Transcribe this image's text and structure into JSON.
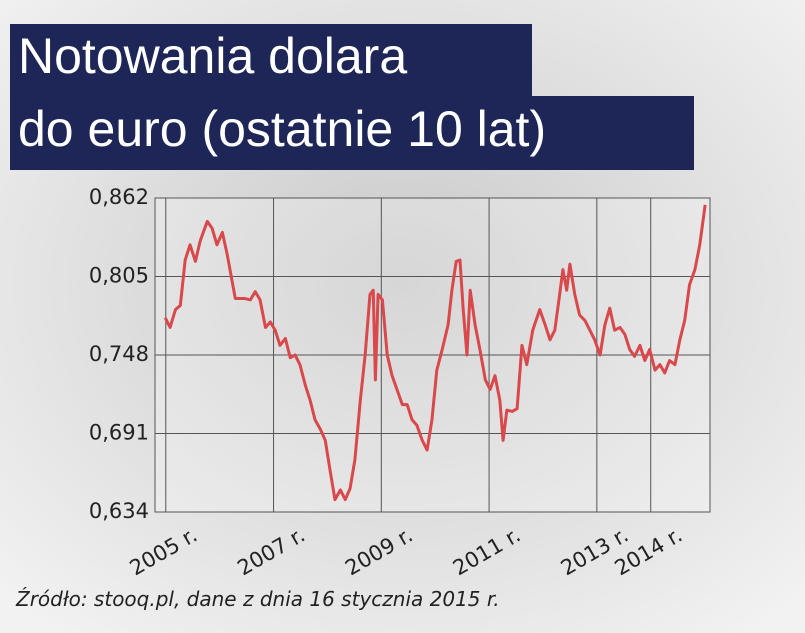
{
  "chart_data": {
    "type": "line",
    "title": [
      "Notowania dolara",
      "do euro (ostatnie 10 lat)"
    ],
    "source": "Źródło: stooq.pl, dane z dnia 16 stycznia 2015 r.",
    "color": "#d9484b",
    "x": [
      2004.99,
      2005.08,
      2005.18,
      2005.27,
      2005.36,
      2005.45,
      2005.55,
      2005.64,
      2005.77,
      2005.86,
      2005.95,
      2006.05,
      2006.14,
      2006.29,
      2006.47,
      2006.57,
      2006.66,
      2006.75,
      2006.85,
      2006.94,
      2007.03,
      2007.12,
      2007.22,
      2007.31,
      2007.4,
      2007.49,
      2007.59,
      2007.68,
      2007.77,
      2007.87,
      2007.96,
      2008.05,
      2008.14,
      2008.24,
      2008.33,
      2008.42,
      2008.51,
      2008.61,
      2008.7,
      2008.79,
      2008.85,
      2008.89,
      2008.94,
      2009.02,
      2009.11,
      2009.2,
      2009.29,
      2009.39,
      2009.48,
      2009.57,
      2009.66,
      2009.76,
      2009.85,
      2009.94,
      2010.03,
      2010.13,
      2010.24,
      2010.31,
      2010.39,
      2010.46,
      2010.52,
      2010.59,
      2010.65,
      2010.74,
      2010.83,
      2010.93,
      2011.02,
      2011.11,
      2011.2,
      2011.26,
      2011.33,
      2011.43,
      2011.52,
      2011.61,
      2011.7,
      2011.81,
      2011.94,
      2012.04,
      2012.13,
      2012.22,
      2012.31,
      2012.37,
      2012.44,
      2012.5,
      2012.59,
      2012.68,
      2012.78,
      2012.87,
      2012.96,
      2013.06,
      2013.15,
      2013.24,
      2013.33,
      2013.43,
      2013.52,
      2013.61,
      2013.7,
      2013.8,
      2013.89,
      2013.98,
      2014.08,
      2014.17,
      2014.26,
      2014.35,
      2014.45,
      2014.54,
      2014.63,
      2014.72,
      2014.82,
      2014.91,
      2015.01
    ],
    "values": [
      0.775,
      0.768,
      0.781,
      0.784,
      0.817,
      0.828,
      0.816,
      0.831,
      0.845,
      0.84,
      0.828,
      0.837,
      0.821,
      0.789,
      0.789,
      0.788,
      0.794,
      0.788,
      0.768,
      0.772,
      0.766,
      0.755,
      0.76,
      0.746,
      0.748,
      0.741,
      0.726,
      0.715,
      0.701,
      0.694,
      0.686,
      0.664,
      0.643,
      0.65,
      0.643,
      0.651,
      0.672,
      0.715,
      0.748,
      0.792,
      0.795,
      0.73,
      0.792,
      0.788,
      0.748,
      0.733,
      0.723,
      0.712,
      0.712,
      0.701,
      0.697,
      0.686,
      0.679,
      0.701,
      0.737,
      0.752,
      0.77,
      0.795,
      0.816,
      0.817,
      0.781,
      0.748,
      0.795,
      0.77,
      0.752,
      0.73,
      0.723,
      0.733,
      0.715,
      0.686,
      0.708,
      0.707,
      0.709,
      0.755,
      0.741,
      0.766,
      0.781,
      0.77,
      0.759,
      0.766,
      0.792,
      0.81,
      0.795,
      0.814,
      0.792,
      0.777,
      0.773,
      0.766,
      0.759,
      0.748,
      0.77,
      0.782,
      0.766,
      0.768,
      0.763,
      0.752,
      0.747,
      0.755,
      0.744,
      0.752,
      0.737,
      0.741,
      0.735,
      0.744,
      0.741,
      0.759,
      0.773,
      0.799,
      0.81,
      0.828,
      0.857
    ],
    "xlim": [
      2004.8,
      2015.1
    ],
    "xticks": [
      {
        "value": 2005,
        "label": "2005 r."
      },
      {
        "value": 2007,
        "label": "2007 r."
      },
      {
        "value": 2009,
        "label": "2009 r."
      },
      {
        "value": 2011,
        "label": "2011 r."
      },
      {
        "value": 2013,
        "label": "2013 r."
      },
      {
        "value": 2014,
        "label": "2014 r."
      }
    ],
    "ylim": [
      0.634,
      0.862
    ],
    "yticks": [
      {
        "value": 0.634,
        "label": "0,634"
      },
      {
        "value": 0.691,
        "label": "0,691"
      },
      {
        "value": 0.748,
        "label": "0,748"
      },
      {
        "value": 0.805,
        "label": "0,805"
      },
      {
        "value": 0.862,
        "label": "0,862"
      }
    ],
    "grid": true
  }
}
